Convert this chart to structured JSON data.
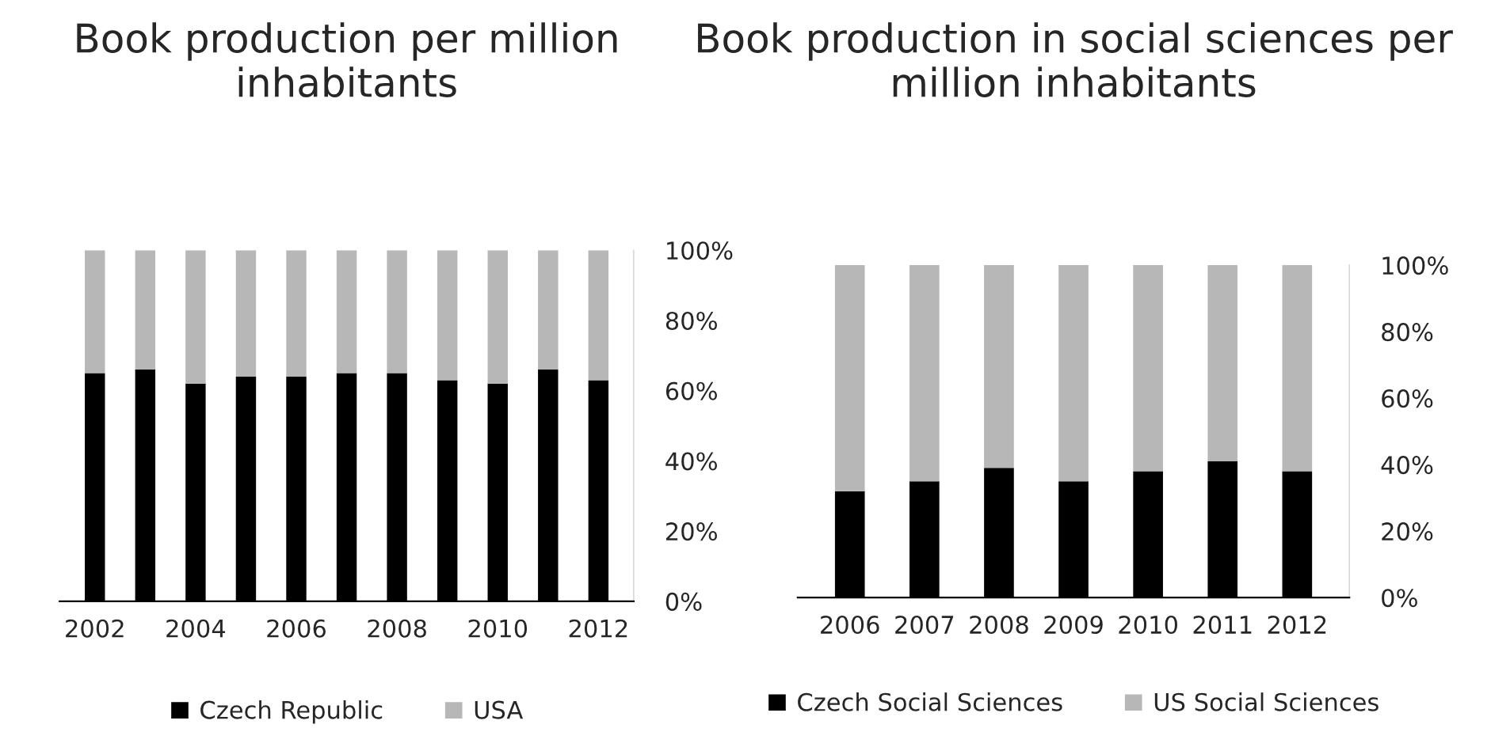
{
  "chart_data": [
    {
      "type": "bar",
      "title": "Book production per million inhabitants",
      "stacked": true,
      "legend": "bottom",
      "grid": false,
      "categories": [
        "2002",
        null,
        "2004",
        null,
        "2006",
        null,
        "2008",
        null,
        "2010",
        null,
        "2012"
      ],
      "series": [
        {
          "name": "Czech Republic",
          "color": "#000000",
          "values": [
            65,
            66,
            62,
            64,
            64,
            65,
            65,
            63,
            62,
            66,
            63
          ]
        },
        {
          "name": "USA",
          "color": "#b7b7b7",
          "values": [
            35,
            34,
            38,
            36,
            36,
            35,
            35,
            37,
            38,
            34,
            37
          ]
        }
      ],
      "ylim": [
        0,
        100
      ],
      "yticks": [
        {
          "value": 0,
          "label": "0%"
        },
        {
          "value": 20,
          "label": "20%"
        },
        {
          "value": 40,
          "label": "40%"
        },
        {
          "value": 60,
          "label": "60%"
        },
        {
          "value": 80,
          "label": "80%"
        },
        {
          "value": 100,
          "label": "100%"
        }
      ]
    },
    {
      "type": "bar",
      "title": "Book production in social sciences per million inhabitants",
      "stacked": true,
      "legend": "bottom",
      "grid": false,
      "categories": [
        "2006",
        "2007",
        "2008",
        "2009",
        "2010",
        "2011",
        "2012"
      ],
      "series": [
        {
          "name": "Czech Social Sciences",
          "color": "#000000",
          "values": [
            32,
            35,
            39,
            35,
            38,
            41,
            38
          ]
        },
        {
          "name": "US Social Sciences",
          "color": "#b7b7b7",
          "values": [
            68,
            65,
            61,
            65,
            62,
            59,
            62
          ]
        }
      ],
      "ylim": [
        0,
        100
      ],
      "yticks": [
        {
          "value": 0,
          "label": "0%"
        },
        {
          "value": 20,
          "label": "20%"
        },
        {
          "value": 40,
          "label": "40%"
        },
        {
          "value": 60,
          "label": "60%"
        },
        {
          "value": 80,
          "label": "80%"
        },
        {
          "value": 100,
          "label": "100%"
        }
      ]
    }
  ]
}
